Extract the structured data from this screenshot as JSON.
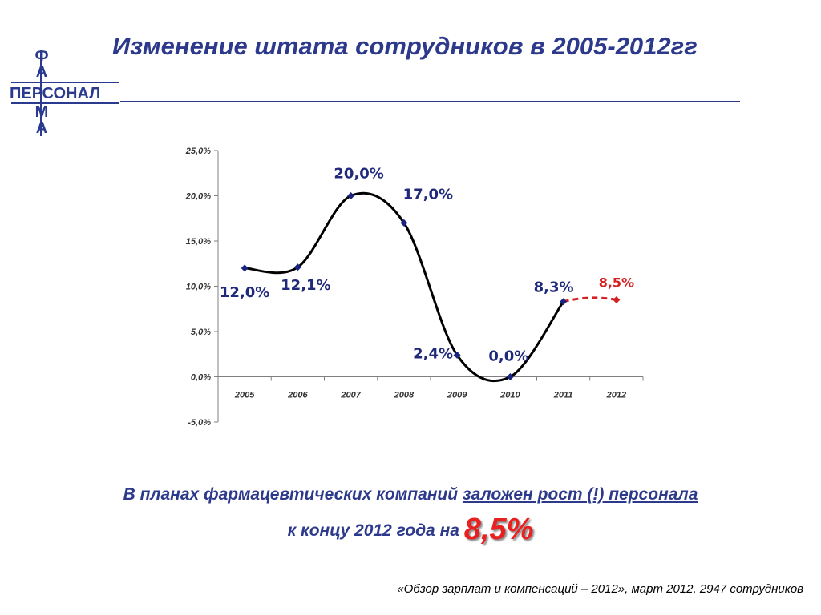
{
  "logo": {
    "top_letters": [
      "Ф",
      "А"
    ],
    "word": "ПЕРСОНАЛ",
    "bottom_letters": [
      "М",
      "А"
    ],
    "color": "#2a3b8f"
  },
  "title": "Изменение штата сотрудников в 2005-2012гг",
  "chart_data": {
    "type": "line",
    "title": "",
    "xlabel": "",
    "ylabel": "",
    "categories": [
      "2005",
      "2006",
      "2007",
      "2008",
      "2009",
      "2010",
      "2011",
      "2012"
    ],
    "values": [
      12.0,
      12.1,
      20.0,
      17.0,
      2.4,
      0.0,
      8.3,
      8.5
    ],
    "data_labels": [
      "12,0%",
      "12,1%",
      "20,0%",
      "17,0%",
      "2,4%",
      "0,0%",
      "8,3%",
      "8,5%"
    ],
    "forecast_from_index": 6,
    "ylim": [
      -5,
      25
    ],
    "yticks": [
      25,
      20,
      15,
      10,
      5,
      0,
      -5
    ],
    "ytick_labels": [
      "25,0%",
      "20,0%",
      "15,0%",
      "10,0%",
      "5,0%",
      "0,0%",
      "-5,0%"
    ],
    "grid": false,
    "legend": "none",
    "colors": {
      "line": "#000000",
      "marker": "#1a237e",
      "label": "#1f2a7a",
      "forecast": "#d42020"
    }
  },
  "caption": {
    "line1_prefix": "В планах фармацевтических компаний ",
    "line1_underlined": "заложен рост (!) персонала",
    "line2_prefix": "к концу 2012 года на ",
    "line2_highlight": "8,5%"
  },
  "source": "«Обзор зарплат и компенсаций – 2012», март 2012, 2947 сотрудников"
}
